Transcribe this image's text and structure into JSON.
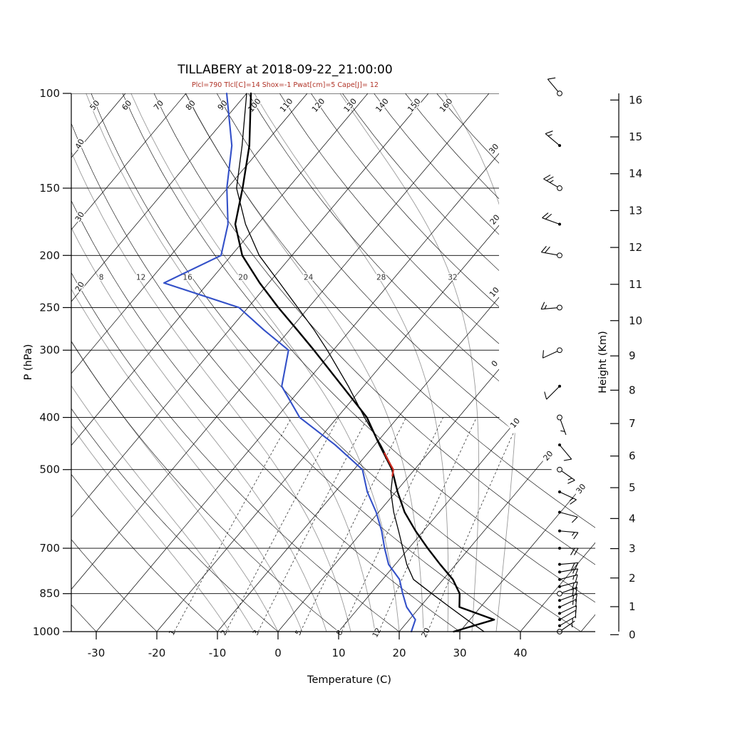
{
  "header": {
    "title": "TILLABERY at 2018-09-22_21:00:00",
    "subtitle": "Plcl=790 Tlcl[C]=14 Shox=-1 Pwat[cm]=5 Cape[J]= 12"
  },
  "axes": {
    "pressure": {
      "label": "P (hPa)",
      "ticks": [
        100,
        150,
        200,
        250,
        300,
        400,
        500,
        700,
        850,
        1000
      ]
    },
    "temperature": {
      "label": "Temperature (C)",
      "ticks": [
        -30,
        -20,
        -10,
        0,
        10,
        20,
        30,
        40
      ]
    },
    "height": {
      "label": "Height (Km)",
      "ticks": [
        0,
        1,
        2,
        3,
        4,
        5,
        6,
        7,
        8,
        9,
        10,
        11,
        12,
        13,
        14,
        15,
        16
      ]
    }
  },
  "chart_data": {
    "type": "line",
    "chart_kind": "skew-T log-P sounding",
    "station": "TILLABERY",
    "datetime": "2018-09-22_21:00:00",
    "parameters": {
      "Plcl_hPa": 790,
      "Tlcl_C": 14,
      "Showalter": -1,
      "Pwat_cm": 5,
      "Cape_J": 12
    },
    "xlabel": "Temperature (C)",
    "ylabel": "P (hPa)",
    "y2label": "Height (Km)",
    "xlim_C": [
      -34,
      52
    ],
    "ylim_hPa": [
      1000,
      100
    ],
    "pressure_hPa": [
      1000,
      950,
      900,
      850,
      800,
      750,
      700,
      650,
      600,
      550,
      500,
      450,
      400,
      350,
      300,
      275,
      250,
      225,
      200,
      175,
      150,
      125,
      100
    ],
    "temperature_C": [
      29.0,
      34.0,
      26.5,
      24.7,
      21.6,
      17.4,
      13.1,
      8.7,
      4.3,
      0.3,
      -3.7,
      -9.2,
      -15.1,
      -23.5,
      -33.2,
      -38.8,
      -45.0,
      -51.5,
      -58.2,
      -63.7,
      -67.5,
      -72.3,
      -79.3
    ],
    "dewpoint_C": [
      22.0,
      21.0,
      17.8,
      15.3,
      12.8,
      8.9,
      6.0,
      3.1,
      -0.4,
      -4.7,
      -8.6,
      -16.5,
      -26.2,
      -33.5,
      -37.4,
      -44.3,
      -51.5,
      -67.3,
      -61.7,
      -64.9,
      -70.1,
      -75.2,
      -83.3
    ],
    "parcel_C": [
      34.0,
      29.5,
      24.9,
      20.1,
      15.1,
      11.9,
      9.0,
      5.9,
      2.5,
      -0.8,
      -3.5,
      -9.0,
      -15.5,
      -22.5,
      -31.0,
      -36.0,
      -41.8,
      -48.2,
      -55.4,
      -62.0,
      -68.5,
      -73.5,
      -80.0
    ],
    "cape_region_hPa": [
      515,
      465
    ],
    "wind_barbs": [
      {
        "p": 1000,
        "spd": 5,
        "dir": 55,
        "marker": "circle"
      },
      {
        "p": 975,
        "spd": 5,
        "dir": 60,
        "marker": "dot"
      },
      {
        "p": 950,
        "spd": 10,
        "dir": 60,
        "marker": "dot"
      },
      {
        "p": 925,
        "spd": 10,
        "dir": 65,
        "marker": "dot"
      },
      {
        "p": 900,
        "spd": 15,
        "dir": 65,
        "marker": "dot"
      },
      {
        "p": 875,
        "spd": 15,
        "dir": 70,
        "marker": "dot"
      },
      {
        "p": 850,
        "spd": 20,
        "dir": 70,
        "marker": "circle"
      },
      {
        "p": 825,
        "spd": 20,
        "dir": 75,
        "marker": "dot"
      },
      {
        "p": 800,
        "spd": 15,
        "dir": 75,
        "marker": "dot"
      },
      {
        "p": 775,
        "spd": 15,
        "dir": 80,
        "marker": "dot"
      },
      {
        "p": 750,
        "spd": 20,
        "dir": 85,
        "marker": "dot"
      },
      {
        "p": 700,
        "spd": 20,
        "dir": 90,
        "marker": "dot"
      },
      {
        "p": 650,
        "spd": 15,
        "dir": 95,
        "marker": "dot"
      },
      {
        "p": 600,
        "spd": 10,
        "dir": 105,
        "marker": "dot"
      },
      {
        "p": 550,
        "spd": 15,
        "dir": 115,
        "marker": "dot"
      },
      {
        "p": 500,
        "spd": 15,
        "dir": 125,
        "marker": "circle"
      },
      {
        "p": 450,
        "spd": 10,
        "dir": 140,
        "marker": "dot"
      },
      {
        "p": 400,
        "spd": 5,
        "dir": 160,
        "marker": "circle"
      },
      {
        "p": 350,
        "spd": 10,
        "dir": 225,
        "marker": "dot"
      },
      {
        "p": 300,
        "spd": 10,
        "dir": 245,
        "marker": "circle"
      },
      {
        "p": 250,
        "spd": 15,
        "dir": 265,
        "marker": "circle"
      },
      {
        "p": 200,
        "spd": 20,
        "dir": 280,
        "marker": "circle"
      },
      {
        "p": 175,
        "spd": 20,
        "dir": 290,
        "marker": "dot"
      },
      {
        "p": 150,
        "spd": 25,
        "dir": 300,
        "marker": "circle"
      },
      {
        "p": 125,
        "spd": 15,
        "dir": 310,
        "marker": "dot"
      },
      {
        "p": 100,
        "spd": 10,
        "dir": 320,
        "marker": "circle"
      }
    ],
    "grid": {
      "isotherms_C": [
        -120,
        -110,
        -100,
        -90,
        -80,
        -70,
        -60,
        -50,
        -40,
        -30,
        -20,
        -10,
        0,
        10,
        20,
        30,
        40,
        50
      ],
      "isotherm_right_labels": [
        {
          "value": -30,
          "text": "30"
        },
        {
          "value": -20,
          "text": "20"
        },
        {
          "value": -10,
          "text": "10"
        },
        {
          "value": 0,
          "text": "0"
        },
        {
          "value": 10,
          "text": "10"
        },
        {
          "value": 20,
          "text": "20"
        },
        {
          "value": 30,
          "text": "30"
        }
      ],
      "dry_adiabats_C": [
        -30,
        -20,
        -10,
        0,
        10,
        20,
        30,
        40,
        50,
        60,
        70,
        80,
        90,
        100,
        110,
        120,
        130,
        140,
        150,
        160
      ],
      "dry_adiabat_top_labels": [
        50,
        60,
        70,
        80,
        90,
        100,
        110,
        120,
        130,
        140,
        150,
        160
      ],
      "dry_adiabat_left_labels": [
        40,
        30,
        20
      ],
      "moist_adiabats_C": [
        -8,
        -4,
        0,
        4,
        8,
        12,
        16,
        20,
        24,
        28,
        32,
        36
      ],
      "moist_adiabat_labels": [
        8,
        12,
        16,
        20,
        24,
        28,
        32
      ],
      "mixing_ratio_g_kg": [
        1,
        2,
        3,
        5,
        8,
        12,
        20
      ]
    },
    "colors": {
      "temperature": "#000000",
      "dewpoint": "#3350c8",
      "parcel": "#000000",
      "cape": "#cc2a1e",
      "moist": "#9a9a9a",
      "mixing": "#333333",
      "grid": "#000000",
      "subtitle": "#b03226"
    }
  }
}
